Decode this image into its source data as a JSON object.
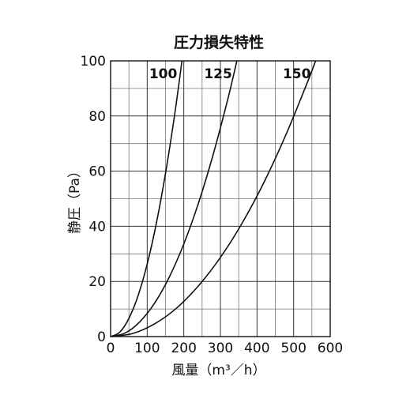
{
  "chart_data": {
    "type": "line",
    "title": "圧力損失特性",
    "xlabel": "風量（m³／h）",
    "ylabel": "静圧（Pa）",
    "xlim": [
      0,
      600
    ],
    "ylim": [
      0,
      100
    ],
    "x_ticks": [
      "0",
      "100",
      "200",
      "300",
      "400",
      "500",
      "600"
    ],
    "y_ticks": [
      "0",
      "20",
      "40",
      "60",
      "80",
      "100"
    ],
    "grid": true,
    "series": [
      {
        "name": "100",
        "x": [
          0,
          25,
          50,
          75,
          100,
          125,
          150,
          175,
          195
        ],
        "y": [
          0,
          1.6,
          6.6,
          14.8,
          26.3,
          41.1,
          59.2,
          80.5,
          100
        ]
      },
      {
        "name": "125",
        "x": [
          0,
          40,
          80,
          120,
          160,
          200,
          240,
          280,
          320,
          345
        ],
        "y": [
          0,
          1.3,
          5.4,
          12.1,
          21.5,
          33.6,
          48.4,
          65.9,
          86.0,
          100
        ]
      },
      {
        "name": "150",
        "x": [
          0,
          60,
          120,
          180,
          240,
          300,
          360,
          420,
          480,
          540,
          560
        ],
        "y": [
          0,
          1.1,
          4.6,
          10.3,
          18.4,
          28.7,
          41.3,
          56.2,
          73.5,
          93.0,
          100
        ]
      }
    ]
  }
}
